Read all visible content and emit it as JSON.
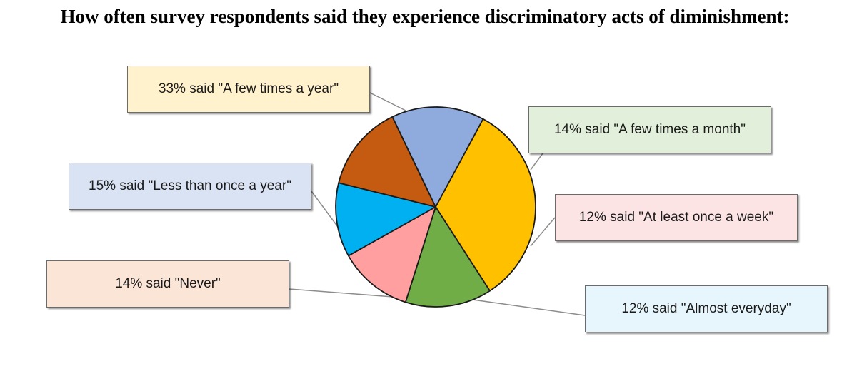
{
  "chart_data": {
    "type": "pie",
    "title": "How often survey respondents said they experience discriminatory acts of diminishment:",
    "unit": "%",
    "slices": [
      {
        "key": "few_year",
        "value": 33,
        "color": "#FFC000",
        "label_bg": "#FFF2CC",
        "label": "33% said \"A few times a year\""
      },
      {
        "key": "few_month",
        "value": 14,
        "color": "#70AD47",
        "label_bg": "#E2EFDA",
        "label": "14% said \"A few times a month\""
      },
      {
        "key": "once_week",
        "value": 12,
        "color": "#FF9F9F",
        "label_bg": "#FCE4E4",
        "label": "12% said \"At least once a week\""
      },
      {
        "key": "almost_every",
        "value": 12,
        "color": "#00B0F0",
        "label_bg": "#E7F6FD",
        "label": "12% said \"Almost everyday\""
      },
      {
        "key": "never",
        "value": 14,
        "color": "#C55A11",
        "label_bg": "#FBE5D6",
        "label": "14% said \"Never\""
      },
      {
        "key": "less_year",
        "value": 15,
        "color": "#8FAADC",
        "label_bg": "#DAE3F3",
        "label": "15% said \"Less than once a year\""
      }
    ]
  }
}
